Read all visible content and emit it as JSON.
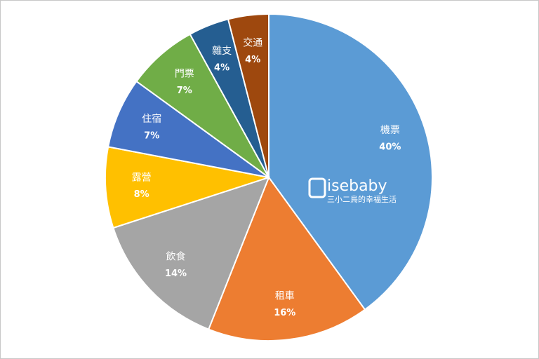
{
  "chart_data": {
    "type": "pie",
    "categories": [
      "機票",
      "租車",
      "飲食",
      "露營",
      "住宿",
      "門票",
      "雜支",
      "交通"
    ],
    "values": [
      40,
      16,
      14,
      8,
      7,
      7,
      4,
      4
    ],
    "value_labels": [
      "40%",
      "16%",
      "14%",
      "8%",
      "7%",
      "7%",
      "4%",
      "4%"
    ],
    "colors": [
      "#5b9bd5",
      "#ed7d31",
      "#a5a5a5",
      "#ffc000",
      "#4472c4",
      "#70ad47",
      "#255e91",
      "#9e480e"
    ],
    "watermark": {
      "logo": "isebaby",
      "tagline": "三小二鳥的幸福生活"
    }
  }
}
